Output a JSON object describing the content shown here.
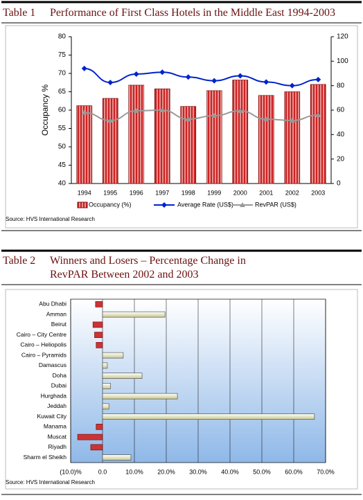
{
  "chart_data": [
    {
      "type": "combo",
      "label": "Table 1",
      "title": "Performance of First Class Hotels in the Middle East 1994-2003",
      "ylabel": "Occupancy %",
      "categories": [
        "1994",
        "1995",
        "1996",
        "1997",
        "1998",
        "1999",
        "2000",
        "2001",
        "2002",
        "2003"
      ],
      "series": [
        {
          "name": "Occupancy  (%)",
          "type": "bar",
          "axis": "y",
          "color": "#cc2222",
          "values": [
            61.2,
            63.2,
            66.8,
            65.8,
            61,
            65.3,
            68.2,
            64,
            65,
            67
          ]
        },
        {
          "name": "Average Rate (US$)",
          "type": "line",
          "marker": "diamond",
          "axis": "y2",
          "color": "#0022cc",
          "values": [
            94,
            82.6,
            89.4,
            91,
            87,
            84,
            88,
            83,
            80,
            85
          ]
        },
        {
          "name": "RevPAR (US$)",
          "type": "line",
          "marker": "triangle",
          "axis": "y2",
          "color": "#999999",
          "values": [
            58,
            51.5,
            59.4,
            60,
            52.6,
            55.5,
            59.4,
            52.6,
            51.5,
            56
          ]
        }
      ],
      "ylim": [
        40,
        80
      ],
      "yticks": [
        40,
        45,
        50,
        55,
        60,
        65,
        70,
        75,
        80
      ],
      "y2lim": [
        0,
        120
      ],
      "y2ticks": [
        0,
        20,
        40,
        60,
        80,
        100,
        120
      ],
      "grid": false,
      "legend": "bottom",
      "source": "Source: HVS International Research"
    },
    {
      "type": "barh",
      "label": "Table 2",
      "title": "Winners and Losers – Percentage Change in RevPAR Between 2002 and 2003",
      "categories": [
        "Abu Dhabi",
        "Amman",
        "Beirut",
        "Cairo – City Centre",
        "Cairo – Heliopolis",
        "Cairo – Pyramids",
        "Damascus",
        "Doha",
        "Dubai",
        "Hurghada",
        "Jeddah",
        "Kuwait City",
        "Manama",
        "Muscat",
        "Riyadh",
        "Sharm el Sheikh"
      ],
      "values": [
        -2.2,
        19.6,
        -3,
        -2.5,
        -2,
        6.5,
        1.5,
        12.4,
        2.5,
        23.5,
        2,
        66.5,
        -2,
        -7.8,
        -3.7,
        8.9
      ],
      "positive_color": "#eeeebb",
      "negative_color": "#cc3333",
      "xlim": [
        -10,
        70
      ],
      "xticks": [
        {
          "value": -10,
          "label": "(10.0)%"
        },
        {
          "value": 0,
          "label": "0.0"
        },
        {
          "value": 10,
          "label": "10.0%"
        },
        {
          "value": 20,
          "label": "20.0%"
        },
        {
          "value": 30,
          "label": "30.0%"
        },
        {
          "value": 40,
          "label": "40.0%"
        },
        {
          "value": 50,
          "label": "50.0%"
        },
        {
          "value": 60,
          "label": "60.0%"
        },
        {
          "value": 70,
          "label": "70.0%"
        }
      ],
      "grid": true,
      "source": "Source: HVS International Research"
    }
  ]
}
